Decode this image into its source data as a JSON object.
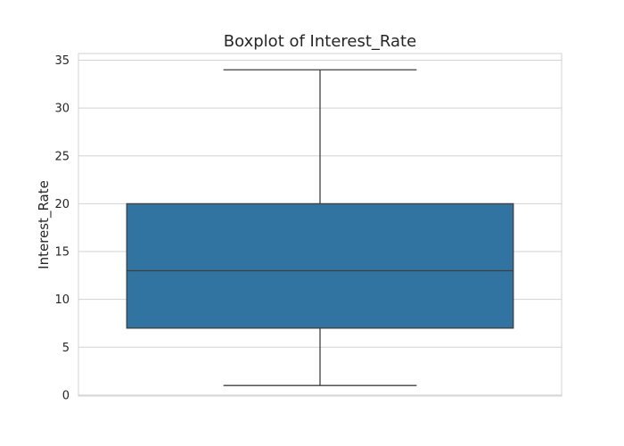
{
  "chart_data": {
    "type": "box",
    "title": "Boxplot of Interest_Rate",
    "xlabel": "",
    "ylabel": "Interest_Rate",
    "ylim": [
      -0.1,
      35.7
    ],
    "yticks": [
      0,
      5,
      10,
      15,
      20,
      25,
      30,
      35
    ],
    "ytick_labels": [
      "0",
      "5",
      "10",
      "15",
      "20",
      "25",
      "30",
      "35"
    ],
    "grid": true,
    "box": {
      "whisker_low": 1,
      "q1": 7,
      "median": 13,
      "q3": 20,
      "whisker_high": 34
    },
    "colors": {
      "box_fill": "#3274a1",
      "line": "#3f3f3f",
      "grid": "#d3d3d3",
      "frame": "#d3d3d3"
    }
  }
}
